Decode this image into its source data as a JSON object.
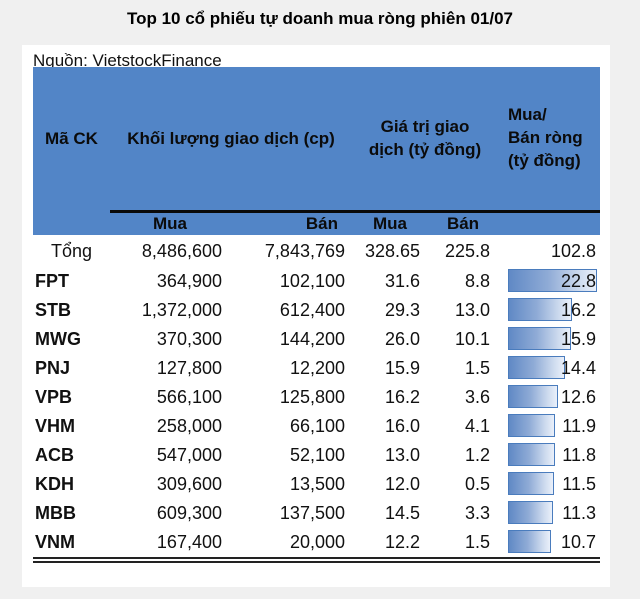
{
  "title": "Top 10 cổ phiếu tự doanh mua ròng phiên 01/07",
  "chart_data": {
    "type": "table",
    "title": "Top 10 cổ phiếu tự doanh mua ròng phiên 01/07",
    "header": {
      "ticker": "Mã CK",
      "volume_group": "Khối lượng giao dịch (cp)",
      "value_group": "Giá trị giao\ndịch (tỷ đồng)",
      "net_group": "Mua/\nBán ròng\n(tỷ đồng)",
      "sub_volume_buy": "Mua",
      "sub_volume_sell": "Bán",
      "sub_value_buy": "Mua",
      "sub_value_sell": "Bán"
    },
    "total": {
      "ticker": "Tổng",
      "vol_buy": "8,486,600",
      "vol_sell": "7,843,769",
      "val_buy": "328.65",
      "val_sell": "225.8",
      "net": "102.8"
    },
    "rows": [
      {
        "ticker": "FPT",
        "vol_buy": "364,900",
        "vol_sell": "102,100",
        "val_buy": "31.6",
        "val_sell": "8.8",
        "net": "22.8"
      },
      {
        "ticker": "STB",
        "vol_buy": "1,372,000",
        "vol_sell": "612,400",
        "val_buy": "29.3",
        "val_sell": "13.0",
        "net": "16.2"
      },
      {
        "ticker": "MWG",
        "vol_buy": "370,300",
        "vol_sell": "144,200",
        "val_buy": "26.0",
        "val_sell": "10.1",
        "net": "15.9"
      },
      {
        "ticker": "PNJ",
        "vol_buy": "127,800",
        "vol_sell": "12,200",
        "val_buy": "15.9",
        "val_sell": "1.5",
        "net": "14.4"
      },
      {
        "ticker": "VPB",
        "vol_buy": "566,100",
        "vol_sell": "125,800",
        "val_buy": "16.2",
        "val_sell": "3.6",
        "net": "12.6"
      },
      {
        "ticker": "VHM",
        "vol_buy": "258,000",
        "vol_sell": "66,100",
        "val_buy": "16.0",
        "val_sell": "4.1",
        "net": "11.9"
      },
      {
        "ticker": "ACB",
        "vol_buy": "547,000",
        "vol_sell": "52,100",
        "val_buy": "13.0",
        "val_sell": "1.2",
        "net": "11.8"
      },
      {
        "ticker": "KDH",
        "vol_buy": "309,600",
        "vol_sell": "13,500",
        "val_buy": "12.0",
        "val_sell": "0.5",
        "net": "11.5"
      },
      {
        "ticker": "MBB",
        "vol_buy": "609,300",
        "vol_sell": "137,500",
        "val_buy": "14.5",
        "val_sell": "3.3",
        "net": "11.3"
      },
      {
        "ticker": "VNM",
        "vol_buy": "167,400",
        "vol_sell": "20,000",
        "val_buy": "12.2",
        "val_sell": "1.5",
        "net": "10.7"
      }
    ],
    "layout": {
      "net_bar_column": "bars proportional to net value, max bar = largest net",
      "grid": "off"
    }
  },
  "footer": {
    "source": "Nguồn: VietstockFinance"
  },
  "colors": {
    "page_bg": "#f0f0f0",
    "header_bg": "#5285c7",
    "bar_border": "#4a7cbd",
    "bar_fill_dark": "#6089c5",
    "bar_fill_light": "#eaf0fa",
    "text": "#111111"
  }
}
